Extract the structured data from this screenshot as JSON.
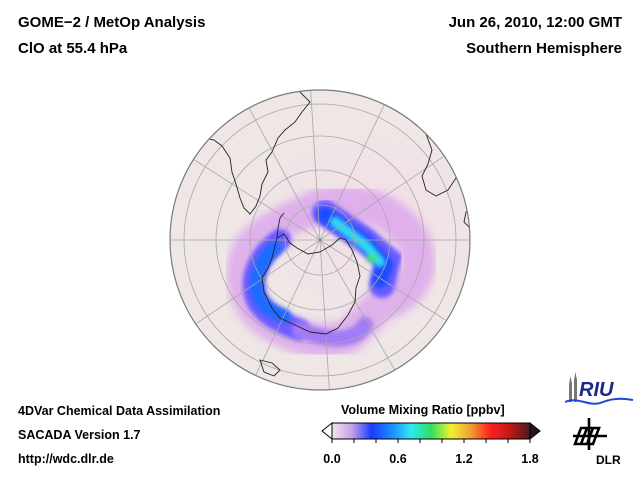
{
  "header": {
    "title_line1": "GOME−2 / MetOp Analysis",
    "title_line2": "ClO at 55.4 hPa",
    "date": "Jun 26, 2010, 12:00 GMT",
    "region": "Southern Hemisphere"
  },
  "footer": {
    "line1": "4DVar Chemical Data Assimilation",
    "line2": "SACADA Version 1.7",
    "line3": "http://wdc.dlr.de"
  },
  "colorbar": {
    "title": "Volume Mixing Ratio [ppbv]",
    "range": [
      0.0,
      1.8
    ],
    "ticks": [
      "0.0",
      "0.6",
      "1.2",
      "1.8"
    ],
    "colors": [
      "#f3e6ea",
      "#c9a0e8",
      "#1a3cff",
      "#1c8cff",
      "#30e8f0",
      "#30e060",
      "#f0f030",
      "#f0a030",
      "#ff2020",
      "#c01818",
      "#4a1a1a"
    ]
  },
  "map": {
    "projection": "orthographic",
    "hemisphere": "Southern Hemisphere",
    "ocean_color": "#efe6e6",
    "coast_color": "#222222",
    "grid_color": "#a8a8a8"
  },
  "logos": {
    "riu": "RIU",
    "dlr": "DLR"
  }
}
